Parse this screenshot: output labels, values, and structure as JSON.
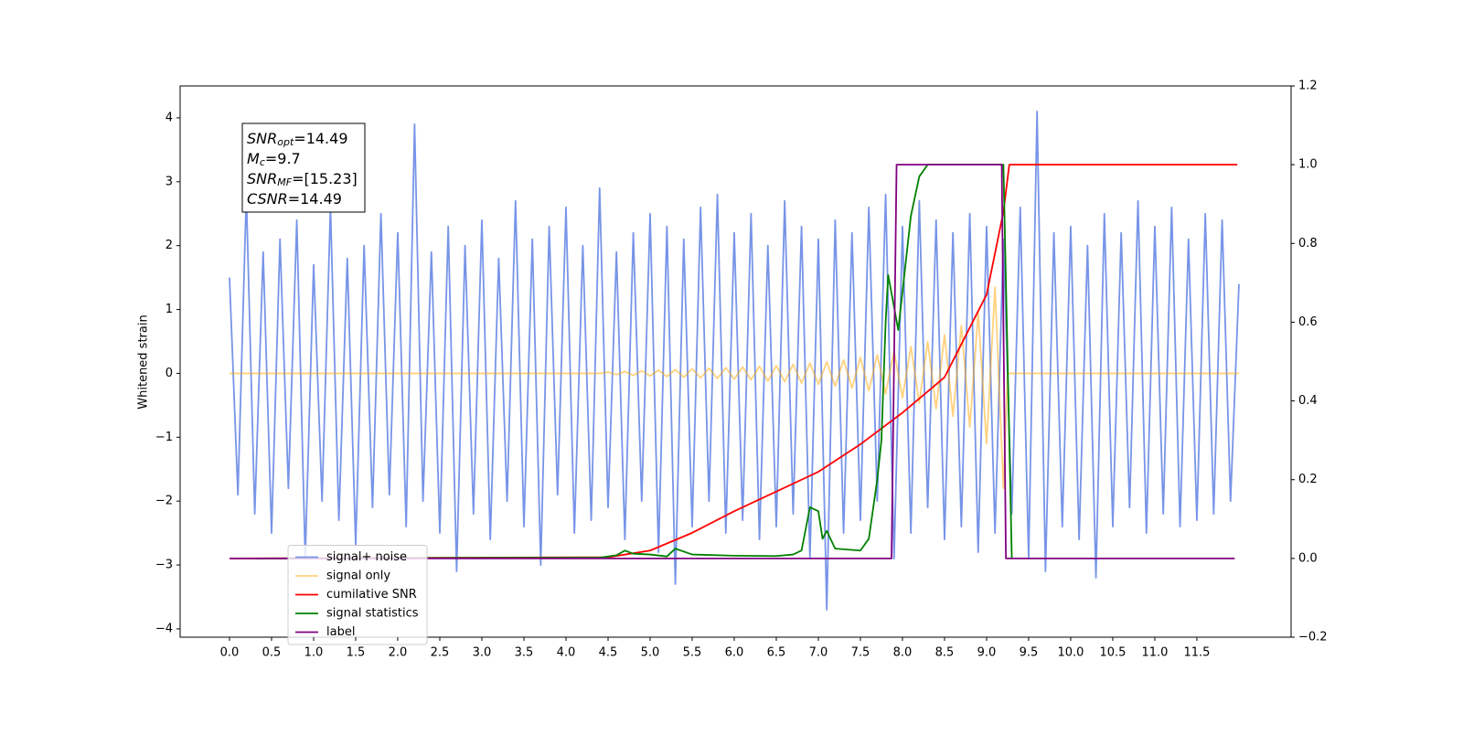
{
  "chart_data": {
    "type": "line",
    "ylabel": "Whitened strain",
    "xlim": [
      -0.587,
      12.62
    ],
    "ylim": [
      -4.13,
      4.5
    ],
    "y2lim": [
      -0.2,
      1.2
    ],
    "xticks": [
      {
        "value": 0,
        "label": "0.0"
      },
      0.5,
      {
        "value": 1,
        "label": "1.0"
      },
      1.5,
      {
        "value": 2,
        "label": "2.0"
      },
      2.5,
      {
        "value": 3,
        "label": "3.0"
      },
      3.5,
      {
        "value": 4,
        "label": "4.0"
      },
      4.5,
      {
        "value": 5,
        "label": "5.0"
      },
      5.5,
      {
        "value": 6,
        "label": "6.0"
      },
      6.5,
      {
        "value": 7,
        "label": "7.0"
      },
      7.5,
      {
        "value": 8,
        "label": "8.0"
      },
      8.5,
      {
        "value": 9,
        "label": "9.0"
      },
      9.5,
      {
        "value": 10,
        "label": "10.0"
      },
      10.5,
      {
        "value": 11,
        "label": "11.0"
      },
      11.5
    ],
    "yticks": [
      {
        "value": -4,
        "label": "−4"
      },
      {
        "value": -3,
        "label": "−3"
      },
      {
        "value": -2,
        "label": "−2"
      },
      {
        "value": -1,
        "label": "−1"
      },
      0,
      1,
      2,
      3,
      4
    ],
    "y2ticks": [
      {
        "value": -0.2,
        "label": "−0.2"
      },
      {
        "value": 0,
        "label": "0.0"
      },
      0.2,
      0.4,
      0.6,
      0.8,
      {
        "value": 1,
        "label": "1.0"
      },
      1.2
    ],
    "legend": "lower left",
    "annotation": [
      {
        "main": "SNR",
        "sub": "opt",
        "rest": "=14.49"
      },
      {
        "main": "M",
        "sub": "c",
        "rest": "=9.7"
      },
      {
        "main": "SNR",
        "sub": "MF",
        "rest": "=[15.23]"
      },
      {
        "main": "CSNR",
        "sub": null,
        "rest": "=14.49"
      }
    ],
    "series": [
      {
        "name": "signal+ noise",
        "color": "#7794e8",
        "alpha": 1,
        "x": [
          0,
          0.1,
          0.2,
          0.3,
          0.4,
          0.5,
          0.6,
          0.7,
          0.8,
          0.9,
          1,
          1.1,
          1.2,
          1.3,
          1.4,
          1.5,
          1.6,
          1.7,
          1.8,
          1.9,
          2,
          2.1,
          2.2,
          2.3,
          2.4,
          2.5,
          2.6,
          2.7,
          2.8,
          2.9,
          3,
          3.1,
          3.2,
          3.3,
          3.4,
          3.5,
          3.6,
          3.7,
          3.8,
          3.9,
          4,
          4.1,
          4.2,
          4.3,
          4.4,
          4.5,
          4.6,
          4.7,
          4.8,
          4.9,
          5,
          5.1,
          5.2,
          5.3,
          5.4,
          5.5,
          5.6,
          5.7,
          5.8,
          5.9,
          6,
          6.1,
          6.2,
          6.3,
          6.4,
          6.5,
          6.6,
          6.7,
          6.8,
          6.9,
          7,
          7.1,
          7.2,
          7.3,
          7.4,
          7.5,
          7.6,
          7.7,
          7.8,
          7.9,
          8,
          8.1,
          8.2,
          8.3,
          8.4,
          8.5,
          8.6,
          8.7,
          8.8,
          8.9,
          9,
          9.1,
          9.2,
          9.3,
          9.4,
          9.5,
          9.6,
          9.7,
          9.8,
          9.9,
          10,
          10.1,
          10.2,
          10.3,
          10.4,
          10.5,
          10.6,
          10.7,
          10.8,
          10.9,
          11,
          11.1,
          11.2,
          11.3,
          11.4,
          11.5,
          11.6,
          11.7,
          11.8,
          11.9,
          12
        ],
        "values": [
          1.5,
          -1.9,
          2.8,
          -2.2,
          1.9,
          -2.5,
          2.1,
          -1.8,
          2.4,
          -2.9,
          1.7,
          -2.0,
          2.6,
          -2.3,
          1.8,
          -2.7,
          2.0,
          -2.1,
          2.5,
          -1.9,
          2.2,
          -2.4,
          3.9,
          -2.0,
          1.9,
          -2.5,
          2.3,
          -3.1,
          2.0,
          -2.2,
          2.4,
          -2.6,
          1.8,
          -2.0,
          2.7,
          -2.4,
          2.1,
          -3.0,
          2.3,
          -1.9,
          2.6,
          -2.5,
          2.0,
          -2.3,
          2.9,
          -2.1,
          1.9,
          -2.6,
          2.2,
          -2.0,
          2.5,
          -2.8,
          2.3,
          -3.3,
          2.1,
          -2.4,
          2.6,
          -2.0,
          2.8,
          -2.5,
          2.2,
          -2.3,
          2.5,
          -2.6,
          2.0,
          -2.4,
          2.7,
          -2.2,
          2.3,
          -2.9,
          2.1,
          -3.7,
          2.4,
          -2.5,
          2.2,
          -2.3,
          2.6,
          -2.0,
          2.8,
          -2.9,
          2.3,
          -2.5,
          2.7,
          -2.1,
          2.4,
          -2.6,
          2.2,
          -2.4,
          2.5,
          -2.8,
          2.3,
          -2.5,
          2.1,
          -2.2,
          2.6,
          -2.9,
          4.1,
          -3.1,
          2.2,
          -2.4,
          2.3,
          -2.6,
          2.0,
          -3.2,
          2.5,
          -2.4,
          2.2,
          -2.1,
          2.7,
          -2.5,
          2.3,
          -2.2,
          2.6,
          -2.4,
          2.1,
          -2.3,
          2.5,
          -2.2,
          2.4,
          -2.0,
          1.4
        ]
      },
      {
        "name": "signal only",
        "color": "#ffa500",
        "alpha": 0.5,
        "x": [
          0,
          4.4,
          4.5,
          4.6,
          4.7,
          4.8,
          4.9,
          5,
          5.1,
          5.2,
          5.3,
          5.4,
          5.5,
          5.6,
          5.7,
          5.8,
          5.9,
          6,
          6.1,
          6.2,
          6.3,
          6.4,
          6.5,
          6.6,
          6.7,
          6.8,
          6.9,
          7,
          7.1,
          7.2,
          7.3,
          7.4,
          7.5,
          7.6,
          7.7,
          7.8,
          7.9,
          8,
          8.1,
          8.2,
          8.3,
          8.4,
          8.5,
          8.6,
          8.7,
          8.8,
          8.9,
          9,
          9.1,
          9.2,
          9.25,
          12
        ],
        "values": [
          0,
          0,
          0.02,
          -0.02,
          0.03,
          -0.03,
          0.04,
          -0.04,
          0.05,
          -0.05,
          0.06,
          -0.06,
          0.07,
          -0.07,
          0.08,
          -0.08,
          0.09,
          -0.09,
          0.1,
          -0.1,
          0.11,
          -0.12,
          0.12,
          -0.13,
          0.14,
          -0.15,
          0.16,
          -0.17,
          0.18,
          -0.2,
          0.21,
          -0.23,
          0.25,
          -0.27,
          0.29,
          -0.32,
          0.35,
          -0.38,
          0.42,
          -0.46,
          0.5,
          -0.55,
          0.6,
          -0.67,
          0.75,
          -0.84,
          0.95,
          -1.1,
          1.35,
          -1.8,
          0,
          0
        ]
      },
      {
        "name": "cumilative SNR",
        "color": "#ff0000",
        "alpha": 1,
        "axis": "y2",
        "x": [
          0,
          4.5,
          5,
          5.5,
          6,
          6.5,
          7,
          7.5,
          8,
          8.5,
          9,
          9.2,
          9.27,
          11.98
        ],
        "values": [
          0,
          0.003,
          0.02,
          0.065,
          0.12,
          0.17,
          0.22,
          0.29,
          0.37,
          0.46,
          0.67,
          0.88,
          1,
          1
        ]
      },
      {
        "name": "signal statistics",
        "color": "#008000",
        "alpha": 1,
        "axis": "y2",
        "x": [
          0.3,
          4.4,
          4.6,
          4.7,
          4.8,
          5,
          5.2,
          5.3,
          5.5,
          6,
          6.5,
          6.7,
          6.8,
          6.9,
          7,
          7.05,
          7.1,
          7.2,
          7.5,
          7.6,
          7.7,
          7.75,
          7.8,
          7.83,
          7.95,
          8.1,
          8.2,
          8.3,
          9.2,
          9.3
        ],
        "values": [
          0,
          0.002,
          0.008,
          0.02,
          0.012,
          0.01,
          0.005,
          0.025,
          0.01,
          0.007,
          0.006,
          0.01,
          0.02,
          0.13,
          0.12,
          0.05,
          0.07,
          0.025,
          0.02,
          0.05,
          0.2,
          0.3,
          0.6,
          0.72,
          0.58,
          0.87,
          0.97,
          1,
          1,
          0
        ]
      },
      {
        "name": "label",
        "color": "#800080",
        "alpha": 1,
        "axis": "y2",
        "x": [
          0,
          7.87,
          7.93,
          9.18,
          9.23,
          11.95
        ],
        "values": [
          0,
          0,
          1,
          1,
          0,
          0
        ]
      }
    ]
  }
}
